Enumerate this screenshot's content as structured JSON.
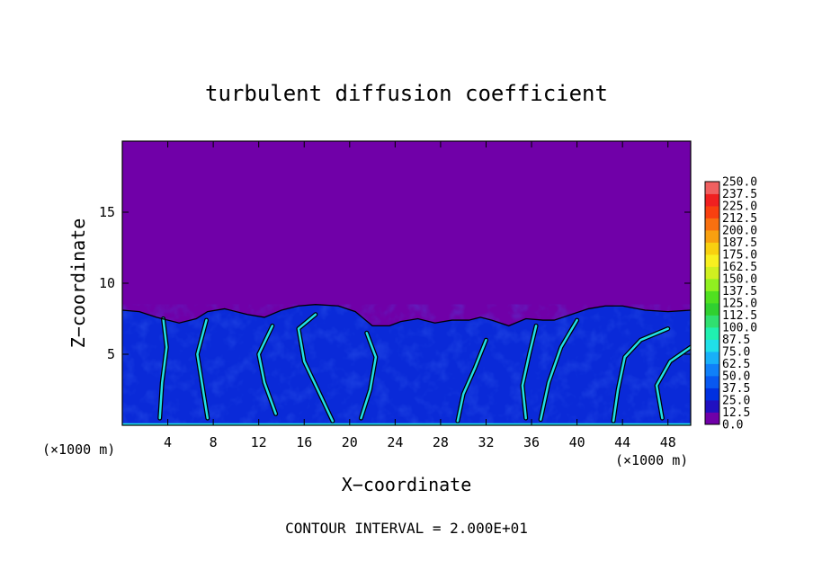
{
  "chart_data": {
    "type": "heatmap",
    "title": "turbulent diffusion coefficient",
    "xlabel": "X−coordinate",
    "ylabel": "Z−coordinate",
    "x_unit_left": "(×1000 m)",
    "x_unit_right": "(×1000 m)",
    "footer": "CONTOUR INTERVAL = 2.000E+01",
    "xlim": [
      0,
      50
    ],
    "ylim": [
      0,
      20
    ],
    "x_ticks": [
      4,
      8,
      12,
      16,
      20,
      24,
      28,
      32,
      36,
      40,
      44,
      48
    ],
    "y_ticks": [
      5,
      10,
      15
    ],
    "boundary_layer_top": [
      [
        0,
        8.1
      ],
      [
        1.5,
        8.0
      ],
      [
        3,
        7.6
      ],
      [
        5,
        7.2
      ],
      [
        6.5,
        7.5
      ],
      [
        7.5,
        8.0
      ],
      [
        9,
        8.2
      ],
      [
        11,
        7.8
      ],
      [
        12.5,
        7.6
      ],
      [
        14,
        8.1
      ],
      [
        15.5,
        8.4
      ],
      [
        17,
        8.5
      ],
      [
        19,
        8.4
      ],
      [
        20.5,
        8.0
      ],
      [
        22,
        7.0
      ],
      [
        23.5,
        7.0
      ],
      [
        24.5,
        7.3
      ],
      [
        26,
        7.5
      ],
      [
        27.5,
        7.2
      ],
      [
        29,
        7.4
      ],
      [
        30.5,
        7.4
      ],
      [
        31.5,
        7.6
      ],
      [
        32.5,
        7.4
      ],
      [
        34,
        7.0
      ],
      [
        35.5,
        7.5
      ],
      [
        37,
        7.4
      ],
      [
        38,
        7.4
      ],
      [
        39.5,
        7.8
      ],
      [
        41,
        8.2
      ],
      [
        42.5,
        8.4
      ],
      [
        44,
        8.4
      ],
      [
        46,
        8.1
      ],
      [
        48,
        8.0
      ],
      [
        50,
        8.1
      ]
    ],
    "colorbar": {
      "levels": [
        "0.0",
        "12.5",
        "25.0",
        "37.5",
        "50.0",
        "62.5",
        "75.0",
        "87.5",
        "100.0",
        "112.5",
        "125.0",
        "137.5",
        "150.0",
        "162.5",
        "175.0",
        "187.5",
        "200.0",
        "212.5",
        "225.0",
        "237.5",
        "250.0"
      ],
      "colors": [
        "#7000a8",
        "#2010c0",
        "#0030e0",
        "#0858f0",
        "#1080f8",
        "#18b0f8",
        "#20e0e8",
        "#20f0b0",
        "#30e070",
        "#30d030",
        "#50e020",
        "#90f020",
        "#d0f020",
        "#f8f020",
        "#f8d010",
        "#f8a010",
        "#f87010",
        "#f84010",
        "#f02020",
        "#f06060"
      ]
    },
    "colors": {
      "background_field": "#7000a8",
      "boundary_layer": "#0a2ad8",
      "strong_turbulence": "#20e0e8",
      "contour": "#000000"
    }
  }
}
